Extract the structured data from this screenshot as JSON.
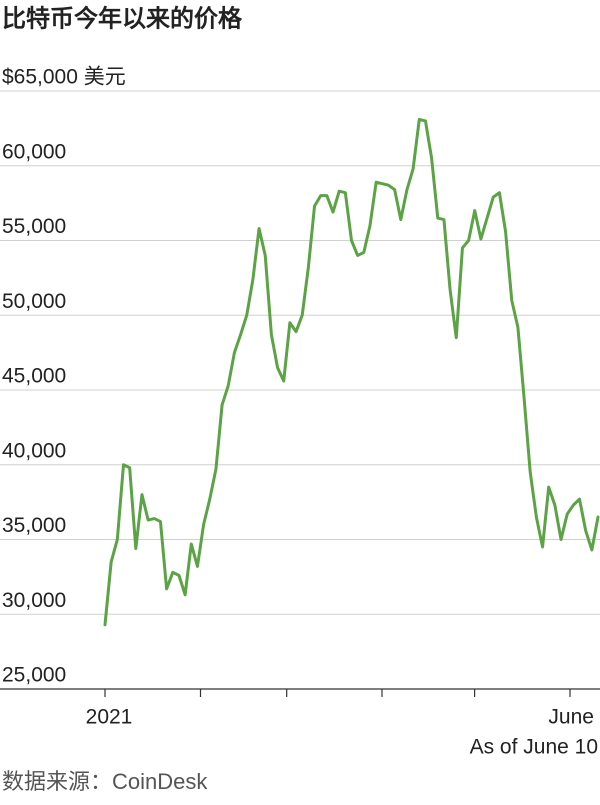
{
  "chart_data": {
    "type": "line",
    "title": "比特币今年以来的价格",
    "annotation": "As of June 10",
    "source": "数据来源：CoinDesk",
    "categories": [
      "2021",
      null,
      null,
      null,
      null,
      null,
      null,
      null,
      null,
      null,
      null,
      null,
      null,
      null,
      null,
      null,
      null,
      null,
      null,
      null,
      null,
      null,
      null,
      null,
      null,
      null,
      null,
      null,
      null,
      null,
      null,
      null,
      null,
      null,
      null,
      null,
      null,
      null,
      null,
      null,
      null,
      null,
      null,
      null,
      null,
      null,
      null,
      null,
      null,
      null,
      null,
      null,
      null,
      null,
      null,
      null,
      null,
      null,
      null,
      null,
      null,
      null,
      null,
      null,
      null,
      null,
      null,
      null,
      null,
      null,
      null,
      null,
      null,
      null,
      null,
      "June",
      null,
      null,
      null,
      null,
      null
    ],
    "values": [
      29300,
      33500,
      35000,
      40000,
      39800,
      34400,
      38000,
      36300,
      36400,
      36200,
      31700,
      32800,
      32600,
      31300,
      34700,
      33200,
      36000,
      37700,
      39700,
      44000,
      45300,
      47500,
      48700,
      50000,
      52400,
      55800,
      54000,
      48700,
      46500,
      45600,
      49500,
      48900,
      50000,
      53200,
      57300,
      58000,
      58000,
      56900,
      58300,
      58200,
      55000,
      54000,
      54200,
      56000,
      58900,
      58800,
      58700,
      58400,
      56400,
      58400,
      59800,
      63100,
      63000,
      60500,
      56500,
      56400,
      51700,
      48500,
      54500,
      55000,
      57000,
      55100,
      56500,
      57900,
      58200,
      55600,
      51000,
      49200,
      44500,
      39500,
      36500,
      34500,
      38500,
      37300,
      35000,
      36700,
      37300,
      37700,
      35600,
      34300,
      36500
    ],
    "color": "#5ba345",
    "ylim": [
      25000,
      65000
    ],
    "yticks": [
      {
        "value": 25000,
        "label": "25,000"
      },
      {
        "value": 30000,
        "label": "30,000"
      },
      {
        "value": 35000,
        "label": "35,000"
      },
      {
        "value": 40000,
        "label": "40,000"
      },
      {
        "value": 45000,
        "label": "45,000"
      },
      {
        "value": 50000,
        "label": "50,000"
      },
      {
        "value": 55000,
        "label": "55,000"
      },
      {
        "value": 60000,
        "label": "60,000"
      },
      {
        "value": 65000,
        "label": "$65,000 美元"
      }
    ],
    "grid": true
  }
}
